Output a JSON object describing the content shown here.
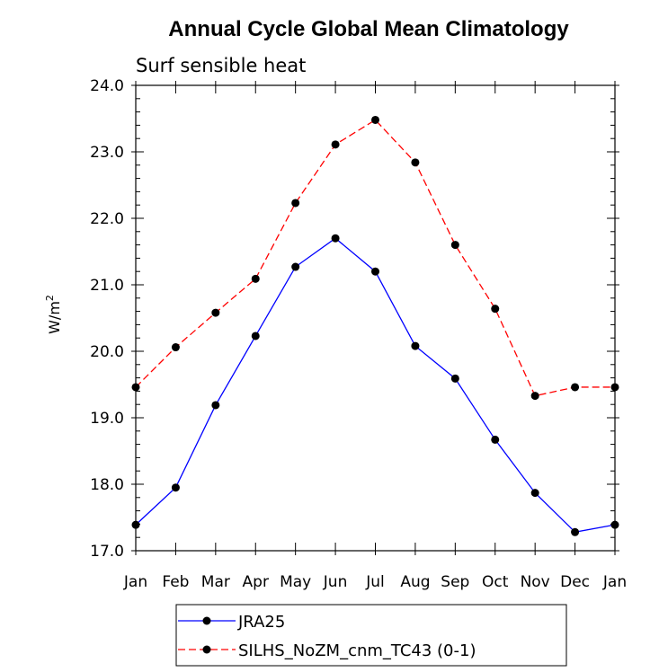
{
  "chart_data": {
    "type": "line",
    "title": "Annual Cycle Global Mean Climatology",
    "subtitle": "Surf sensible heat",
    "ylabel": "W/m",
    "ylabel_superscript": "2",
    "categories": [
      "Jan",
      "Feb",
      "Mar",
      "Apr",
      "May",
      "Jun",
      "Jul",
      "Aug",
      "Sep",
      "Oct",
      "Nov",
      "Dec",
      "Jan"
    ],
    "yticks": [
      "17.0",
      "18.0",
      "19.0",
      "20.0",
      "21.0",
      "22.0",
      "23.0",
      "24.0"
    ],
    "ylim": [
      17.0,
      24.0
    ],
    "grid": false,
    "legend_position": "bottom",
    "series": [
      {
        "name": "JRA25",
        "color": "#0000ff",
        "style": "solid",
        "values": [
          17.39,
          17.95,
          19.19,
          20.23,
          21.27,
          21.7,
          21.2,
          20.08,
          19.59,
          18.67,
          17.87,
          17.28,
          17.39
        ]
      },
      {
        "name": "SILHS_NoZM_cnm_TC43 (0-1)",
        "color": "#ff0000",
        "style": "dashed",
        "values": [
          19.46,
          20.06,
          20.58,
          21.09,
          22.23,
          23.11,
          23.48,
          22.84,
          21.6,
          20.64,
          19.33,
          19.46,
          19.46
        ]
      }
    ]
  }
}
